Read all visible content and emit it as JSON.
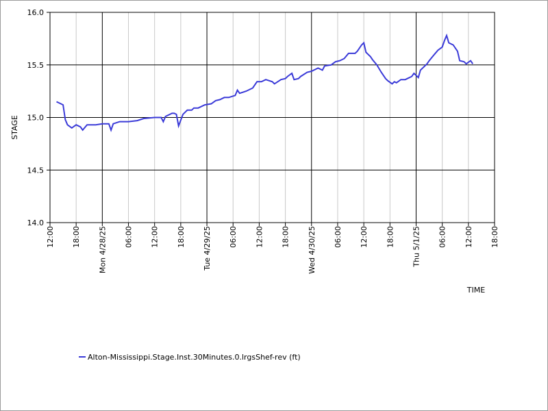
{
  "chart_data": {
    "type": "line",
    "y_label": "STAGE",
    "x_label": "TIME",
    "xlim": [
      0,
      102
    ],
    "xticks": [
      {
        "value": 0,
        "label": "12:00"
      },
      {
        "value": 6,
        "label": "18:00"
      },
      {
        "value": 12,
        "label": "Mon 4/28/25"
      },
      {
        "value": 18,
        "label": "06:00"
      },
      {
        "value": 24,
        "label": "12:00"
      },
      {
        "value": 30,
        "label": "18:00"
      },
      {
        "value": 36,
        "label": "Tue 4/29/25"
      },
      {
        "value": 42,
        "label": "06:00"
      },
      {
        "value": 48,
        "label": "12:00"
      },
      {
        "value": 54,
        "label": "18:00"
      },
      {
        "value": 60,
        "label": "Wed 4/30/25"
      },
      {
        "value": 66,
        "label": "06:00"
      },
      {
        "value": 72,
        "label": "12:00"
      },
      {
        "value": 78,
        "label": "18:00"
      },
      {
        "value": 84,
        "label": "Thu 5/1/25"
      },
      {
        "value": 90,
        "label": "06:00"
      },
      {
        "value": 96,
        "label": "12:00"
      },
      {
        "value": 102,
        "label": "18:00"
      }
    ],
    "ylim": [
      14,
      16
    ],
    "yticks": [
      {
        "value": 14,
        "label": "14.0"
      },
      14.5,
      {
        "value": 15,
        "label": "15.0"
      },
      15.5,
      {
        "value": 16,
        "label": "16.0"
      }
    ],
    "grid": true,
    "series": [
      {
        "name": "Alton-Mississippi.Stage.Inst.30Minutes.0.lrgsShef-rev (ft)",
        "color": "#3a3ad8",
        "x": [
          1.5,
          2.5,
          3,
          3.5,
          4,
          5,
          6,
          7,
          7.5,
          8.5,
          9.5,
          10.5,
          12,
          13.5,
          14,
          14.5,
          16,
          18,
          20,
          21.5,
          24,
          25.5,
          26,
          26.5,
          28,
          28.5,
          29,
          29.5,
          30.5,
          31.5,
          32.5,
          33,
          34,
          35.5,
          37,
          38,
          39,
          40,
          41,
          42.5,
          43,
          43.5,
          45,
          46.5,
          47.5,
          48.5,
          49.5,
          51,
          51.5,
          53,
          54,
          54.5,
          55.5,
          56,
          57,
          57.5,
          59,
          60,
          61.5,
          62.5,
          63,
          64.5,
          65.5,
          66.5,
          67.5,
          68.5,
          70,
          70.5,
          71.5,
          72,
          72.5,
          73.5,
          74,
          75,
          76,
          77,
          77.5,
          78.5,
          79,
          79.5,
          80.5,
          81.5,
          82,
          83,
          83.5,
          84.5,
          85,
          86.5,
          87,
          88,
          89,
          90,
          90.5,
          91,
          91.5,
          92.5,
          93.5,
          94,
          95,
          95.5,
          96.5,
          97
        ],
        "values": [
          15.15,
          15.13,
          15.12,
          14.98,
          14.93,
          14.9,
          14.93,
          14.91,
          14.88,
          14.93,
          14.93,
          14.93,
          14.94,
          14.94,
          14.88,
          14.94,
          14.96,
          14.96,
          14.97,
          14.99,
          15.0,
          15.0,
          14.96,
          15.01,
          15.04,
          15.04,
          15.03,
          14.92,
          15.03,
          15.07,
          15.07,
          15.09,
          15.09,
          15.12,
          15.13,
          15.16,
          15.17,
          15.19,
          15.19,
          15.21,
          15.26,
          15.23,
          15.25,
          15.28,
          15.34,
          15.34,
          15.36,
          15.34,
          15.32,
          15.36,
          15.37,
          15.39,
          15.42,
          15.36,
          15.37,
          15.39,
          15.43,
          15.44,
          15.47,
          15.45,
          15.49,
          15.5,
          15.53,
          15.54,
          15.56,
          15.61,
          15.61,
          15.63,
          15.69,
          15.71,
          15.62,
          15.58,
          15.55,
          15.5,
          15.43,
          15.37,
          15.35,
          15.32,
          15.34,
          15.33,
          15.36,
          15.36,
          15.37,
          15.39,
          15.42,
          15.38,
          15.45,
          15.51,
          15.54,
          15.59,
          15.64,
          15.67,
          15.73,
          15.78,
          15.71,
          15.69,
          15.63,
          15.54,
          15.53,
          15.51,
          15.54,
          15.51
        ]
      }
    ]
  }
}
